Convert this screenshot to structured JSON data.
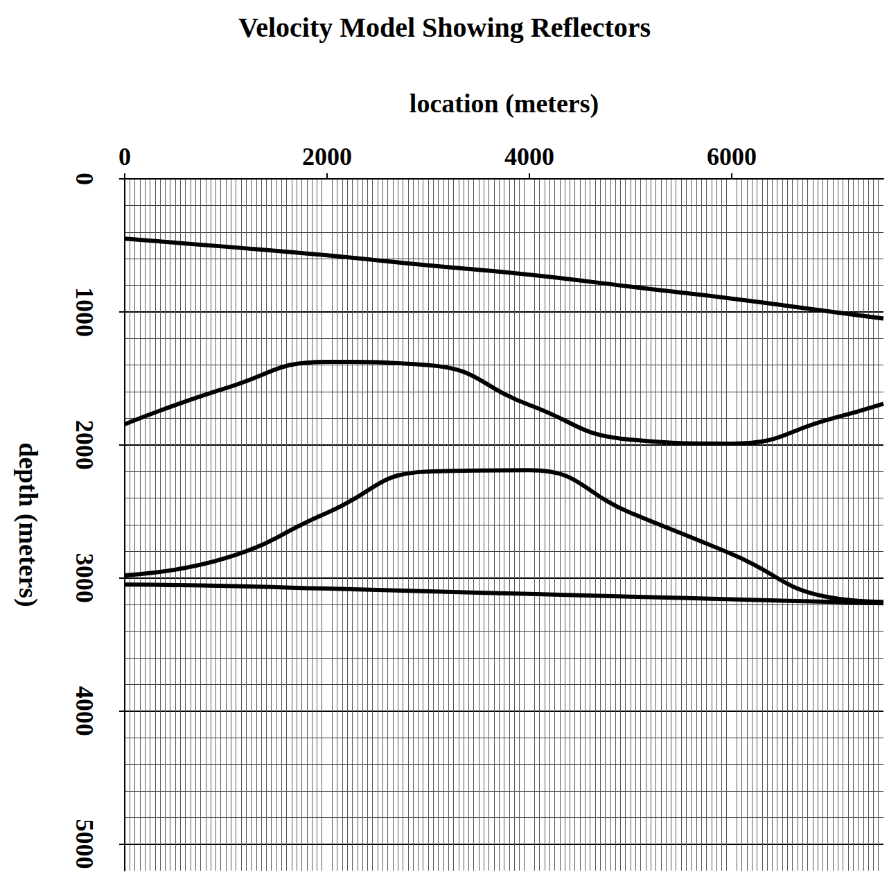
{
  "chart_data": {
    "type": "line",
    "title": "Velocity Model Showing Reflectors",
    "x_label": "location (meters)",
    "y_label": "depth (meters)",
    "x": [
      0,
      1000,
      2000,
      3000,
      4000,
      5000,
      6000,
      7000,
      7500
    ],
    "series": [
      {
        "color": "#000000",
        "values": [
          450,
          510,
          575,
          650,
          720,
          810,
          900,
          1000,
          1050
        ]
      },
      {
        "color": "#000000",
        "values": [
          1844,
          1573,
          1375,
          1400,
          1700,
          1960,
          1990,
          1800,
          1690
        ]
      },
      {
        "color": "#000000",
        "values": [
          2980,
          2850,
          2510,
          2200,
          2190,
          2510,
          2820,
          3150,
          3180
        ]
      },
      {
        "color": "#000000",
        "values": [
          3050,
          3060,
          3080,
          3100,
          3120,
          3140,
          3160,
          3180,
          3190
        ]
      }
    ],
    "xlim": [
      0,
      7500
    ],
    "xticks": [
      0,
      2000,
      4000,
      6000
    ],
    "ylim": [
      0,
      5200
    ],
    "yticks": [
      0,
      1000,
      2000,
      3000,
      4000,
      5000
    ],
    "grid": true,
    "line_style": "solid"
  }
}
